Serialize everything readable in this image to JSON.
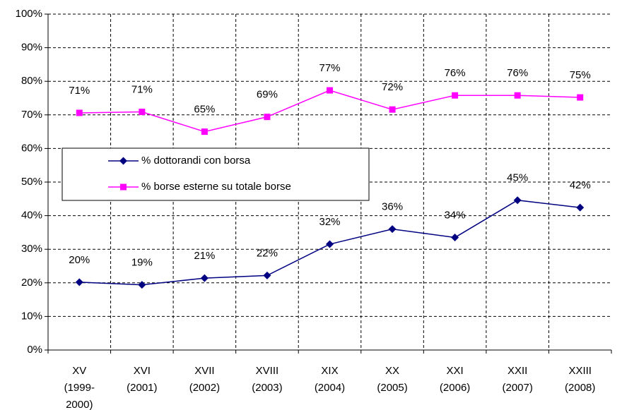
{
  "chart_data": {
    "type": "line",
    "categories": [
      "XV\n(1999-\n2000)",
      "XVI\n(2001)",
      "XVII\n(2002)",
      "XVIII\n(2003)",
      "XIX\n(2004)",
      "XX\n(2005)",
      "XXI\n(2006)",
      "XXII\n(2007)",
      "XXIII\n(2008)"
    ],
    "series": [
      {
        "name": "% dottorandi con borsa",
        "color": "#000080",
        "marker": "diamond",
        "values": [
          20.2,
          19.4,
          21.4,
          22.2,
          31.5,
          36,
          33.5,
          44.6,
          42.4
        ],
        "value_labels": [
          "20%",
          "19%",
          "21%",
          "22%",
          "32%",
          "36%",
          "34%",
          "45%",
          "42%"
        ]
      },
      {
        "name": "% borse esterne su totale borse",
        "color": "#ff00ff",
        "marker": "square",
        "values": [
          70.6,
          70.9,
          65,
          69.4,
          77.3,
          71.6,
          75.8,
          75.8,
          75.2
        ],
        "value_labels": [
          "71%",
          "71%",
          "65%",
          "69%",
          "77%",
          "72%",
          "76%",
          "76%",
          "75%"
        ]
      }
    ],
    "ylim": [
      0,
      100
    ],
    "yticks": [
      {
        "value": 0,
        "label": "0%"
      },
      {
        "value": 10,
        "label": "10%"
      },
      {
        "value": 20,
        "label": "20%"
      },
      {
        "value": 30,
        "label": "30%"
      },
      {
        "value": 40,
        "label": "40%"
      },
      {
        "value": 50,
        "label": "50%"
      },
      {
        "value": 60,
        "label": "60%"
      },
      {
        "value": 70,
        "label": "70%"
      },
      {
        "value": 80,
        "label": "80%"
      },
      {
        "value": 90,
        "label": "90%"
      },
      {
        "value": 100,
        "label": "100%"
      }
    ],
    "grid": true,
    "legend": "left"
  }
}
